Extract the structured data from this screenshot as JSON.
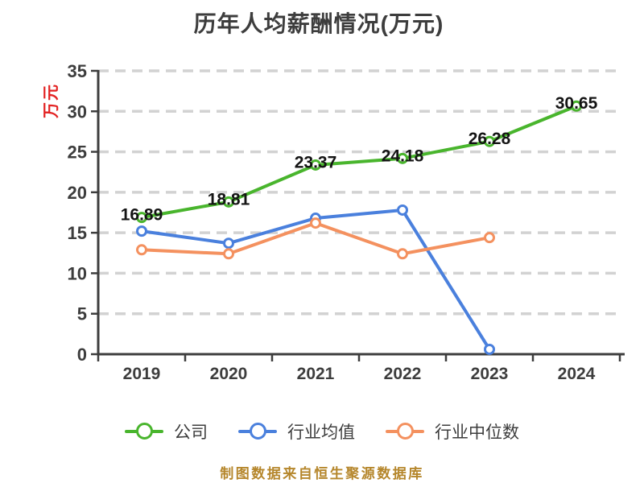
{
  "title": "历年人均薪酬情况(万元)",
  "y_axis_unit": "万元",
  "source_note": "制图数据来自恒生聚源数据库",
  "colors": {
    "company": "#49b52d",
    "industry_avg": "#4a80dd",
    "industry_median": "#f4915f",
    "axis": "#3d3d3d",
    "grid": "#d2d2d2",
    "point_label": "#141414",
    "unit_label": "#e32222",
    "source_note": "#b5862b"
  },
  "chart_data": {
    "type": "line",
    "title": "历年人均薪酬情况(万元)",
    "xlabel": "",
    "ylabel": "万元",
    "categories": [
      "2019",
      "2020",
      "2021",
      "2022",
      "2023",
      "2024"
    ],
    "series": [
      {
        "name": "公司",
        "color": "#49b52d",
        "values": [
          16.89,
          18.81,
          23.37,
          24.18,
          26.28,
          30.65
        ],
        "labels": [
          "16.89",
          "18.81",
          "23.37",
          "24.18",
          "26.28",
          "30.65"
        ],
        "show_labels": true
      },
      {
        "name": "行业均值",
        "color": "#4a80dd",
        "values": [
          15.2,
          13.7,
          16.8,
          17.8,
          0.6,
          null
        ],
        "show_labels": false
      },
      {
        "name": "行业中位数",
        "color": "#f4915f",
        "values": [
          12.9,
          12.4,
          16.2,
          12.4,
          14.4,
          null
        ],
        "show_labels": false
      }
    ],
    "ylim": [
      0,
      35
    ],
    "yticks": [
      0,
      5,
      10,
      15,
      20,
      25,
      30,
      35
    ],
    "grid": "horizontal-dashed",
    "legend_position": "bottom"
  }
}
